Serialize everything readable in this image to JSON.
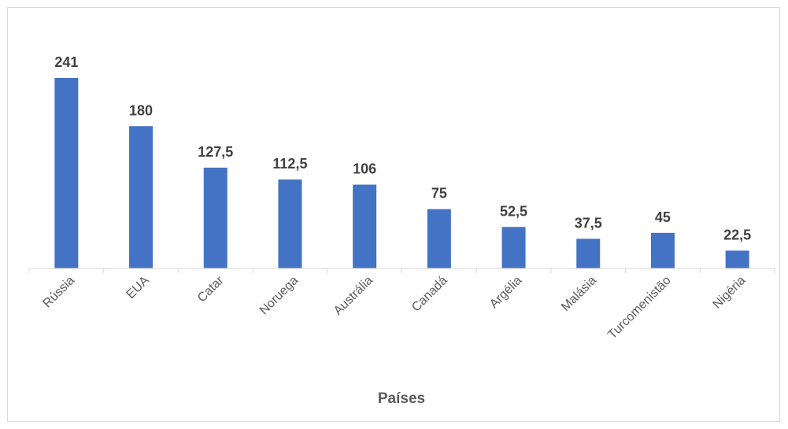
{
  "chart_data": {
    "type": "bar",
    "title": "",
    "xlabel": "Países",
    "ylabel": "",
    "categories": [
      "Rússia",
      "EUA",
      "Catar",
      "Noruega",
      "Austrália",
      "Canadá",
      "Argélia",
      "Malásia",
      "Turcomenistão",
      "Nigéria"
    ],
    "values": [
      241,
      180,
      127.5,
      112.5,
      106,
      75,
      52.5,
      37.5,
      45,
      22.5
    ],
    "value_labels": [
      "241",
      "180",
      "127,5",
      "112,5",
      "106",
      "75",
      "52,5",
      "37,5",
      "45",
      "22,5"
    ],
    "ylim": [
      0,
      241
    ],
    "grid": false,
    "legend": "none",
    "bar_color": "#4472c4",
    "axis_color": "#d9d9d9"
  }
}
